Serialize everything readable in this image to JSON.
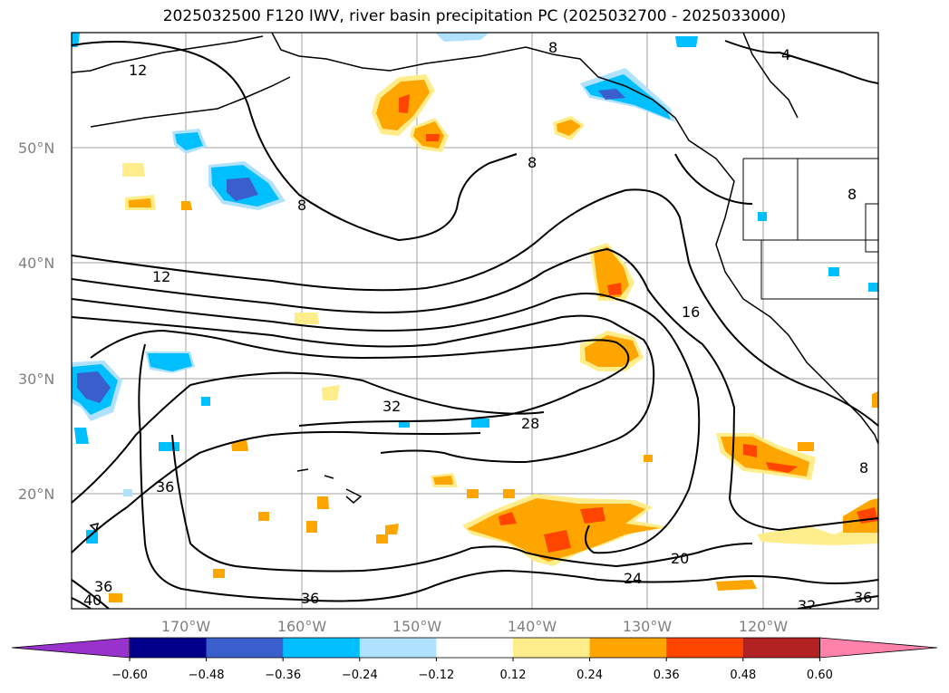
{
  "title": "2025032500 F120 IWV, river basin precipitation PC (2025032700 - 2025033000)",
  "lat_labels": [
    "50°N",
    "40°N",
    "30°N",
    "20°N"
  ],
  "lon_labels": [
    "170°W",
    "160°W",
    "150°W",
    "140°W",
    "130°W",
    "120°W"
  ],
  "contour_labels": [
    "12",
    "12",
    "16",
    "32",
    "28",
    "36",
    "36",
    "40",
    "36",
    "20",
    "24",
    "32",
    "36",
    "4",
    "8",
    "8",
    "8",
    "8",
    "8"
  ],
  "colorbar": {
    "ticks": [
      "−0.60",
      "−0.48",
      "−0.36",
      "−0.24",
      "−0.12",
      "0.12",
      "0.24",
      "0.36",
      "0.48",
      "0.60"
    ],
    "colors": [
      "#9932cc",
      "#00008b",
      "#3a5fcd",
      "#00bfff",
      "#b0e2ff",
      "#ffffff",
      "#ffec8b",
      "#ffa500",
      "#ff4500",
      "#b22222",
      "#ff82ab"
    ]
  }
}
